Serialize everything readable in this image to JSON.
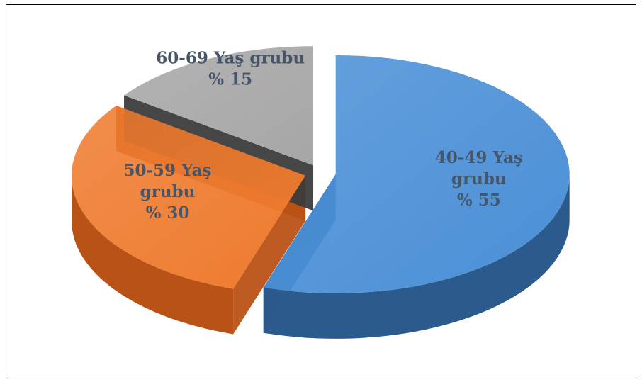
{
  "chart_data": {
    "type": "pie",
    "style": "3d-exploded",
    "title": "",
    "slices": [
      {
        "name": "40-49 Yaş grubu",
        "value": 55,
        "lines": [
          "40-49 Yaş",
          "grubu",
          "% 55"
        ],
        "color": "#4A8FD6",
        "side_color": "#2B5A8C",
        "label_color": "#475569"
      },
      {
        "name": "50-59 Yaş grubu",
        "value": 30,
        "lines": [
          "50-59 Yaş",
          "grubu",
          "% 30"
        ],
        "color": "#EE7A2D",
        "side_color": "#B95216",
        "label_color": "#475569"
      },
      {
        "name": "60-69 Yaş grubu",
        "value": 15,
        "lines": [
          "60-69 Yaş grubu",
          "% 15"
        ],
        "color": "#A6A6A6",
        "side_color": "#3C3C3C",
        "label_color": "#475569"
      }
    ]
  }
}
